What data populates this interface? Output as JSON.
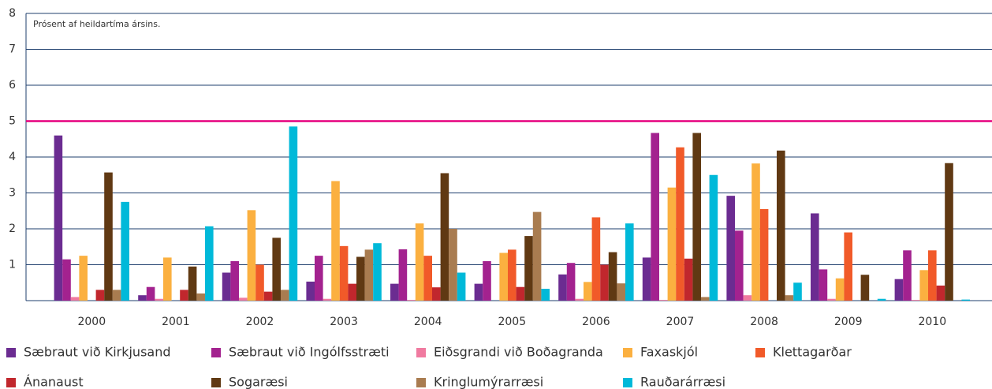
{
  "chart_data": {
    "type": "bar",
    "annotation": "Prósent af heildartíma ársins.",
    "categories": [
      "2000",
      "2001",
      "2002",
      "2003",
      "2004",
      "2005",
      "2006",
      "2007",
      "2008",
      "2009",
      "2010"
    ],
    "series": [
      {
        "name": "Sæbraut við Kirkjusand",
        "color": "#6b2c91",
        "values": [
          4.6,
          0.15,
          0.78,
          0.53,
          0.47,
          0.47,
          0.73,
          1.2,
          2.92,
          2.43,
          0.6
        ]
      },
      {
        "name": "Sæbraut við Ingólfsstræti",
        "color": "#a3228f",
        "values": [
          1.15,
          0.38,
          1.1,
          1.25,
          1.43,
          1.1,
          1.05,
          4.67,
          1.95,
          0.87,
          1.4
        ]
      },
      {
        "name": "Eiðsgrandi við Boðagranda",
        "color": "#f07aa0",
        "values": [
          0.1,
          0.05,
          0.08,
          0.05,
          0.02,
          0,
          0.05,
          0.02,
          0.15,
          0.05,
          0.02
        ]
      },
      {
        "name": "Faxaskjól",
        "color": "#fbb040",
        "values": [
          1.25,
          1.2,
          2.52,
          3.33,
          2.15,
          1.33,
          0.52,
          3.15,
          3.82,
          0.62,
          0.85
        ]
      },
      {
        "name": "Klettagarðar",
        "color": "#f15a29",
        "values": [
          0,
          0,
          1.0,
          1.52,
          1.25,
          1.42,
          2.32,
          4.27,
          2.55,
          1.9,
          1.4
        ]
      },
      {
        "name": "Ánanaust",
        "color": "#c1272d",
        "values": [
          0.3,
          0.3,
          0.25,
          0.47,
          0.37,
          0.38,
          1.0,
          1.17,
          0,
          0,
          0.42
        ]
      },
      {
        "name": "Sogaræsi",
        "color": "#603913",
        "values": [
          3.57,
          0.95,
          1.75,
          1.22,
          3.55,
          1.8,
          1.35,
          4.67,
          4.18,
          0.72,
          3.83
        ]
      },
      {
        "name": "Kringlumýrarræsi",
        "color": "#a97c50",
        "values": [
          0.3,
          0.2,
          0.3,
          1.42,
          2.0,
          2.47,
          0.48,
          0.1,
          0.15,
          0,
          0
        ]
      },
      {
        "name": "Rauðarárræsi",
        "color": "#00b9d9",
        "values": [
          2.75,
          2.07,
          4.85,
          1.6,
          0.78,
          0.33,
          2.15,
          3.5,
          0.5,
          0.05,
          0.03
        ]
      }
    ],
    "ylim": [
      0,
      8
    ],
    "yticks": [
      1,
      2,
      3,
      4,
      5,
      6,
      7,
      8
    ],
    "grid": true,
    "reference_line": {
      "value": 5,
      "color": "#e6007e"
    },
    "grid_color": "#1f3f6e"
  }
}
